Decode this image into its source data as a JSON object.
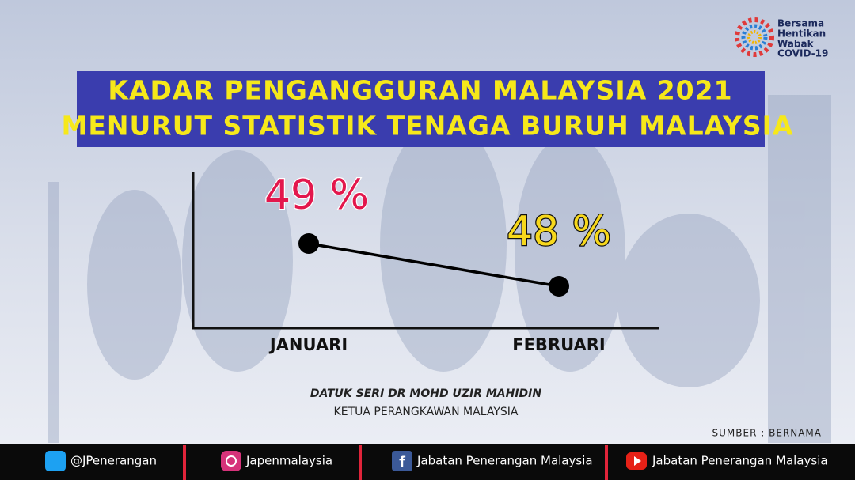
{
  "chart_data": {
    "type": "line",
    "title": [
      "KADAR PENGANGGURAN MALAYSIA 2021",
      "MENURUT STATISTIK TENAGA BURUH MALAYSIA"
    ],
    "categories": [
      "JANUARI",
      "FEBRUARI"
    ],
    "values": [
      49,
      48
    ],
    "value_labels": [
      "49 %",
      "48 %"
    ],
    "value_label_colors": [
      "#e3174c",
      "#f7d81c"
    ],
    "color": "#000000"
  },
  "logo": [
    "Bersama",
    "Hentikan",
    "Wabak",
    "COVID-19"
  ],
  "person": {
    "name": "DATUK SERI DR MOHD UZIR MAHIDIN",
    "role": "KETUA PERANGKAWAN MALAYSIA"
  },
  "source": "SUMBER : BERNAMA",
  "footer": [
    "@JPenerangan",
    "Japenmalaysia",
    "Jabatan Penerangan Malaysia",
    "Jabatan Penerangan Malaysia"
  ]
}
